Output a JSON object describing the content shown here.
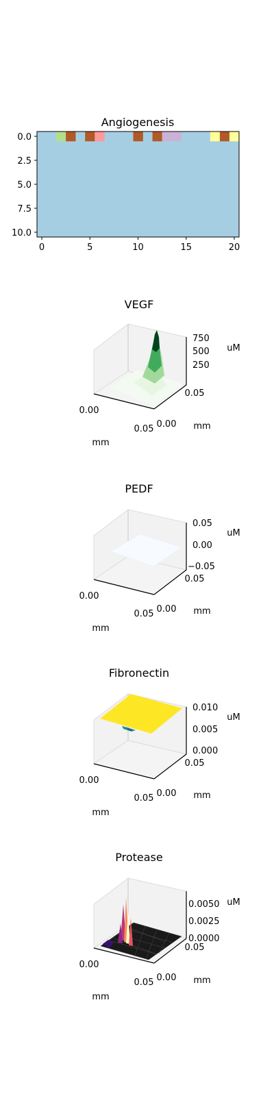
{
  "chart_data": [
    {
      "type": "heatmap",
      "title": "Angiogenesis",
      "rows": 11,
      "cols": 21,
      "background_color": "#a6cee3",
      "xlim": [
        -0.5,
        20.5
      ],
      "ylim": [
        10.5,
        -0.5
      ],
      "x_ticks": [
        "0",
        "5",
        "10",
        "15",
        "20"
      ],
      "y_ticks": [
        "0.0",
        "2.5",
        "5.0",
        "7.5",
        "10.0"
      ],
      "cells": [
        {
          "row": 0,
          "col": 2,
          "color": "#b2df8a"
        },
        {
          "row": 0,
          "col": 3,
          "color": "#b15928"
        },
        {
          "row": 0,
          "col": 5,
          "color": "#b15928"
        },
        {
          "row": 0,
          "col": 6,
          "color": "#fb9a99"
        },
        {
          "row": 0,
          "col": 10,
          "color": "#b15928"
        },
        {
          "row": 0,
          "col": 12,
          "color": "#b15928"
        },
        {
          "row": 0,
          "col": 13,
          "color": "#cab2d6"
        },
        {
          "row": 0,
          "col": 14,
          "color": "#cab2d6"
        },
        {
          "row": 0,
          "col": 18,
          "color": "#ffff99"
        },
        {
          "row": 0,
          "col": 19,
          "color": "#b15928"
        },
        {
          "row": 0,
          "col": 20,
          "color": "#ffff99"
        }
      ]
    },
    {
      "type": "surface3d",
      "title": "VEGF",
      "x_ticks": [
        "0.00",
        "0.05"
      ],
      "y_ticks": [
        "0.00",
        "0.05"
      ],
      "z_ticks": [
        "250",
        "500",
        "750"
      ],
      "xlabel": "mm",
      "ylabel": "mm",
      "zlabel": "uM",
      "colormap": "Greens",
      "shape": "peak"
    },
    {
      "type": "surface3d",
      "title": "PEDF",
      "x_ticks": [
        "0.00",
        "0.05"
      ],
      "y_ticks": [
        "0.00",
        "0.05"
      ],
      "z_ticks": [
        "0.05",
        "0.00",
        "−0.05"
      ],
      "xlabel": "mm",
      "ylabel": "mm",
      "zlabel": "uM",
      "colormap": "Blues",
      "shape": "flat-mid"
    },
    {
      "type": "surface3d",
      "title": "Fibronectin",
      "x_ticks": [
        "0.00",
        "0.05"
      ],
      "y_ticks": [
        "0.00",
        "0.05"
      ],
      "z_ticks": [
        "0.010",
        "0.005",
        "0.000"
      ],
      "xlabel": "mm",
      "ylabel": "mm",
      "zlabel": "uM",
      "colormap": "viridis",
      "shape": "flat-top"
    },
    {
      "type": "surface3d",
      "title": "Protease",
      "x_ticks": [
        "0.00",
        "0.05"
      ],
      "y_ticks": [
        "0.00",
        "0.05"
      ],
      "z_ticks": [
        "0.0050",
        "0.0025",
        "0.0000"
      ],
      "xlabel": "mm",
      "ylabel": "mm",
      "zlabel": "uM",
      "colormap": "magma",
      "shape": "flat-bottom-spikes"
    }
  ]
}
